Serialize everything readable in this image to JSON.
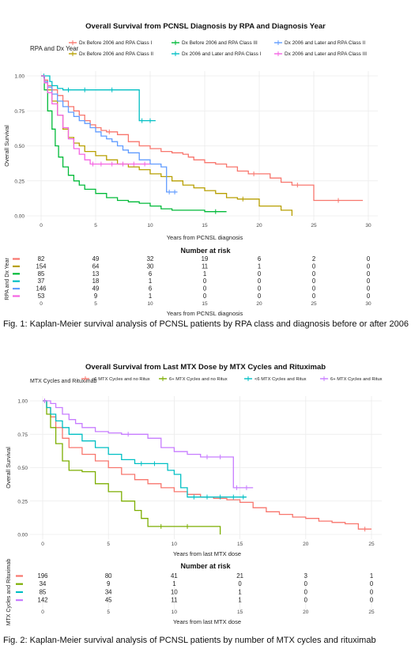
{
  "colors": {
    "c1": "#f8766d",
    "c2": "#b79f00",
    "c3": "#00ba38",
    "c4": "#00bfc4",
    "c5": "#619cff",
    "c6": "#f564e3",
    "m1": "#f8766d",
    "m2": "#7cae00",
    "m3": "#00bfc4",
    "m4": "#c77cff",
    "grid": "#ebebeb",
    "axis": "#444444"
  },
  "figures": [
    {
      "caption": "Fig. 1: Kaplan-Meier survival analysis of PCNSL patients by RPA class and diagnosis before or after 2006",
      "chart_data": {
        "type": "line",
        "title": "Overall Survival from PCNSL Diagnosis by RPA and Diagnosis Year",
        "xlabel": "Years from PCNSL diagnosis",
        "ylabel": "Overall Survival",
        "legend_title": "RPA and Dx Year",
        "xlim": [
          0,
          31
        ],
        "ylim": [
          0,
          1
        ],
        "xticks": [
          "0",
          "5",
          "10",
          "15",
          "20",
          "25",
          "30"
        ],
        "yticks": [
          "0.00",
          "0.25",
          "0.50",
          "0.75",
          "1.00"
        ],
        "series": [
          {
            "name": "Dx Before 2006 and RPA Class I",
            "color_key": "c1",
            "x": [
              0,
              0.3,
              0.6,
              1,
              1.5,
              2,
              2.5,
              3,
              3.5,
              4,
              4.5,
              5,
              5.5,
              6,
              6.5,
              7,
              8,
              9,
              10,
              11,
              12,
              13,
              13.5,
              14,
              15,
              16,
              17,
              18,
              19,
              20,
              21,
              22,
              23,
              24,
              25,
              29.5
            ],
            "y": [
              1,
              0.97,
              0.93,
              0.9,
              0.86,
              0.82,
              0.78,
              0.75,
              0.72,
              0.68,
              0.65,
              0.63,
              0.61,
              0.6,
              0.6,
              0.58,
              0.53,
              0.5,
              0.48,
              0.46,
              0.45,
              0.44,
              0.42,
              0.4,
              0.38,
              0.37,
              0.35,
              0.32,
              0.3,
              0.3,
              0.27,
              0.24,
              0.22,
              0.22,
              0.11,
              0.11
            ]
          },
          {
            "name": "Dx Before 2006 and RPA Class II",
            "color_key": "c2",
            "x": [
              0,
              0.3,
              0.6,
              1,
              1.5,
              2,
              2.5,
              3,
              3.5,
              4,
              5,
              6,
              7,
              8,
              9,
              10,
              11,
              12,
              13,
              14,
              15,
              16,
              17,
              18,
              19,
              20,
              22,
              23
            ],
            "y": [
              1,
              0.96,
              0.9,
              0.82,
              0.72,
              0.62,
              0.56,
              0.52,
              0.5,
              0.46,
              0.43,
              0.4,
              0.37,
              0.35,
              0.33,
              0.3,
              0.28,
              0.25,
              0.22,
              0.2,
              0.18,
              0.16,
              0.13,
              0.12,
              0.12,
              0.07,
              0.04,
              0
            ]
          },
          {
            "name": "Dx Before 2006 and RPA Class III",
            "color_key": "c3",
            "x": [
              0,
              0.3,
              0.6,
              1,
              1.3,
              1.6,
              2,
              2.5,
              3,
              3.5,
              4,
              5,
              6,
              7,
              8,
              9,
              10,
              11,
              12,
              15,
              17
            ],
            "y": [
              1,
              0.9,
              0.75,
              0.62,
              0.5,
              0.42,
              0.35,
              0.29,
              0.25,
              0.22,
              0.19,
              0.16,
              0.13,
              0.11,
              0.1,
              0.09,
              0.07,
              0.05,
              0.04,
              0.03,
              0.03
            ]
          },
          {
            "name": "Dx 2006 and Later and RPA Class I",
            "color_key": "c4",
            "x": [
              0,
              0.5,
              0.8,
              1,
              1.5,
              2,
              3,
              5,
              8,
              9,
              9.5,
              10.5
            ],
            "y": [
              1,
              1,
              0.96,
              0.93,
              0.91,
              0.9,
              0.9,
              0.9,
              0.9,
              0.68,
              0.68,
              0.68
            ]
          },
          {
            "name": "Dx 2006 and Later and RPA Class II",
            "color_key": "c5",
            "x": [
              0,
              0.3,
              0.6,
              1,
              1.5,
              2,
              2.5,
              3,
              3.5,
              4,
              4.5,
              5,
              5.5,
              6,
              6.5,
              7,
              7.5,
              8,
              9,
              10,
              11,
              11.5,
              12,
              12.5
            ],
            "y": [
              1,
              0.96,
              0.92,
              0.87,
              0.82,
              0.78,
              0.74,
              0.71,
              0.68,
              0.66,
              0.63,
              0.6,
              0.57,
              0.55,
              0.53,
              0.5,
              0.47,
              0.45,
              0.4,
              0.37,
              0.35,
              0.17,
              0.17,
              0.17
            ]
          },
          {
            "name": "Dx 2006 and Later and RPA Class III",
            "color_key": "c6",
            "x": [
              0,
              0.3,
              0.6,
              1,
              1.5,
              2,
              2.5,
              3,
              3.5,
              4,
              4.5,
              5,
              6,
              7,
              8,
              9,
              10
            ],
            "y": [
              1,
              0.95,
              0.88,
              0.8,
              0.72,
              0.63,
              0.55,
              0.48,
              0.44,
              0.4,
              0.37,
              0.37,
              0.37,
              0.37,
              0.37,
              0.37,
              0.37
            ]
          }
        ],
        "risk_table": {
          "title": "Number at risk",
          "xlabel": "Years from PCNSL diagnosis",
          "ylabel": "RPA and Dx Year",
          "xticks": [
            "0",
            "5",
            "10",
            "15",
            "20",
            "25",
            "30"
          ],
          "rows": [
            {
              "color_key": "c1",
              "values": [
                "82",
                "49",
                "32",
                "19",
                "6",
                "2",
                "0"
              ]
            },
            {
              "color_key": "c2",
              "values": [
                "154",
                "64",
                "30",
                "11",
                "1",
                "0",
                "0"
              ]
            },
            {
              "color_key": "c3",
              "values": [
                "85",
                "13",
                "6",
                "1",
                "0",
                "0",
                "0"
              ]
            },
            {
              "color_key": "c4",
              "values": [
                "37",
                "18",
                "1",
                "0",
                "0",
                "0",
                "0"
              ]
            },
            {
              "color_key": "c5",
              "values": [
                "146",
                "49",
                "6",
                "0",
                "0",
                "0",
                "0"
              ]
            },
            {
              "color_key": "c6",
              "values": [
                "53",
                "9",
                "1",
                "0",
                "0",
                "0",
                "0"
              ]
            }
          ]
        }
      }
    },
    {
      "caption": "Fig. 2: Kaplan-Meier survival analysis of PCNSL patients by number of MTX cycles and rituximab",
      "chart_data": {
        "type": "line",
        "title": "Overall Survival from Last MTX Dose by MTX Cycles and Rituximab",
        "xlabel": "Years from last MTX dose",
        "ylabel": "Overall Survival",
        "legend_title": "MTX Cycles and Rituximab",
        "xlim": [
          0,
          26
        ],
        "ylim": [
          0,
          1
        ],
        "xticks": [
          "0",
          "5",
          "10",
          "15",
          "20",
          "25"
        ],
        "yticks": [
          "0.00",
          "0.25",
          "0.50",
          "0.75",
          "1.00"
        ],
        "series": [
          {
            "name": "<6 MTX Cycles and no Ritux",
            "color_key": "m1",
            "x": [
              0,
              0.3,
              0.6,
              1,
              1.5,
              2,
              3,
              4,
              5,
              6,
              7,
              8,
              9,
              10,
              11,
              12,
              13,
              14,
              15,
              16,
              17,
              18,
              19,
              20,
              21,
              22,
              23,
              24,
              25
            ],
            "y": [
              1,
              0.95,
              0.88,
              0.8,
              0.72,
              0.65,
              0.6,
              0.55,
              0.5,
              0.45,
              0.41,
              0.38,
              0.35,
              0.32,
              0.3,
              0.28,
              0.27,
              0.26,
              0.24,
              0.2,
              0.17,
              0.15,
              0.13,
              0.12,
              0.1,
              0.09,
              0.08,
              0.04,
              0.04
            ]
          },
          {
            "name": "6+ MTX Cycles and no Ritux",
            "color_key": "m2",
            "x": [
              0,
              0.3,
              0.6,
              1,
              1.5,
              2,
              3,
              4,
              5,
              6,
              7,
              7.5,
              8,
              10,
              12,
              13.5
            ],
            "y": [
              1,
              0.9,
              0.8,
              0.68,
              0.55,
              0.48,
              0.47,
              0.38,
              0.32,
              0.25,
              0.18,
              0.12,
              0.06,
              0.06,
              0.06,
              0
            ]
          },
          {
            "name": "<6 MTX Cycles and Ritux",
            "color_key": "m3",
            "x": [
              0,
              0.3,
              0.6,
              1,
              1.5,
              2,
              3,
              4,
              5,
              6,
              7,
              8,
              9,
              9.5,
              10,
              10.5,
              11,
              12,
              13,
              14,
              15,
              15.5
            ],
            "y": [
              1,
              0.95,
              0.9,
              0.85,
              0.8,
              0.75,
              0.7,
              0.65,
              0.6,
              0.56,
              0.53,
              0.53,
              0.53,
              0.48,
              0.45,
              0.35,
              0.28,
              0.28,
              0.28,
              0.28,
              0.28,
              0.28
            ]
          },
          {
            "name": "6+ MTX Cycles and Ritux",
            "color_key": "m4",
            "x": [
              0,
              0.3,
              0.6,
              1,
              1.5,
              2,
              2.5,
              3,
              4,
              5,
              6,
              7,
              8,
              9,
              10,
              11,
              12,
              13,
              14,
              14.5,
              15,
              16
            ],
            "y": [
              1,
              1,
              0.98,
              0.95,
              0.9,
              0.86,
              0.83,
              0.8,
              0.77,
              0.76,
              0.75,
              0.75,
              0.72,
              0.65,
              0.62,
              0.6,
              0.58,
              0.58,
              0.58,
              0.35,
              0.35,
              0.35
            ]
          }
        ],
        "risk_table": {
          "title": "Number at risk",
          "xlabel": "Years from last MTX dose",
          "ylabel": "MTX Cycles and Rituximab",
          "xticks": [
            "0",
            "5",
            "10",
            "15",
            "20",
            "25"
          ],
          "rows": [
            {
              "color_key": "m1",
              "values": [
                "196",
                "80",
                "41",
                "21",
                "3",
                "1"
              ]
            },
            {
              "color_key": "m2",
              "values": [
                "34",
                "9",
                "1",
                "0",
                "0",
                "0"
              ]
            },
            {
              "color_key": "m3",
              "values": [
                "85",
                "34",
                "10",
                "1",
                "0",
                "0"
              ]
            },
            {
              "color_key": "m4",
              "values": [
                "142",
                "45",
                "11",
                "1",
                "0",
                "0"
              ]
            }
          ]
        }
      }
    }
  ]
}
